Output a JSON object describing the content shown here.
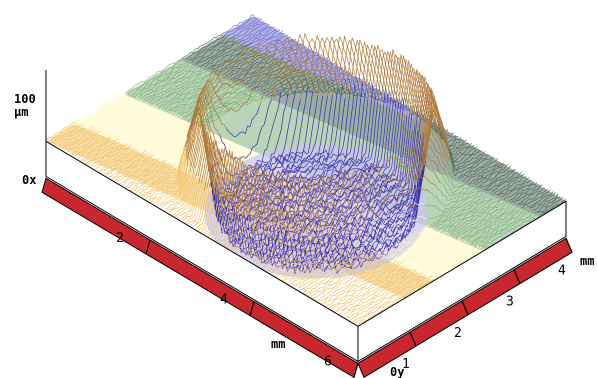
{
  "chart_data": {
    "type": "surface",
    "z_axis": {
      "max_label": "100",
      "unit": "µm",
      "range": [
        0,
        100
      ]
    },
    "x_axis": {
      "origin_label": "0x",
      "unit": "mm",
      "ticks": [
        "2",
        "4",
        "6"
      ],
      "range": [
        0,
        6
      ]
    },
    "y_axis": {
      "origin_label": "0y",
      "unit": "mm",
      "ticks": [
        "1",
        "2",
        "3",
        "4"
      ],
      "range": [
        0,
        4
      ]
    },
    "surface": {
      "feature": "circular crater with raised rim",
      "crater_center_mm": {
        "x": 3.2,
        "y": 2.0
      },
      "crater_radius_mm": 1.6,
      "crater_depth_um": 75,
      "rim_height_um": 100,
      "plateau_height_um": 25
    },
    "colors": {
      "base_block": "#ffffff",
      "axis_bar": "#c8282d",
      "crater_floor": "#3a2fb0",
      "rim": "#b07a3a",
      "plateau_near": "#fff9c8",
      "plateau_orange": "#f0c060",
      "plateau_green": "#7fb07a",
      "plateau_dark": "#4d6a5a",
      "plateau_far": "#6f6fd0"
    }
  }
}
